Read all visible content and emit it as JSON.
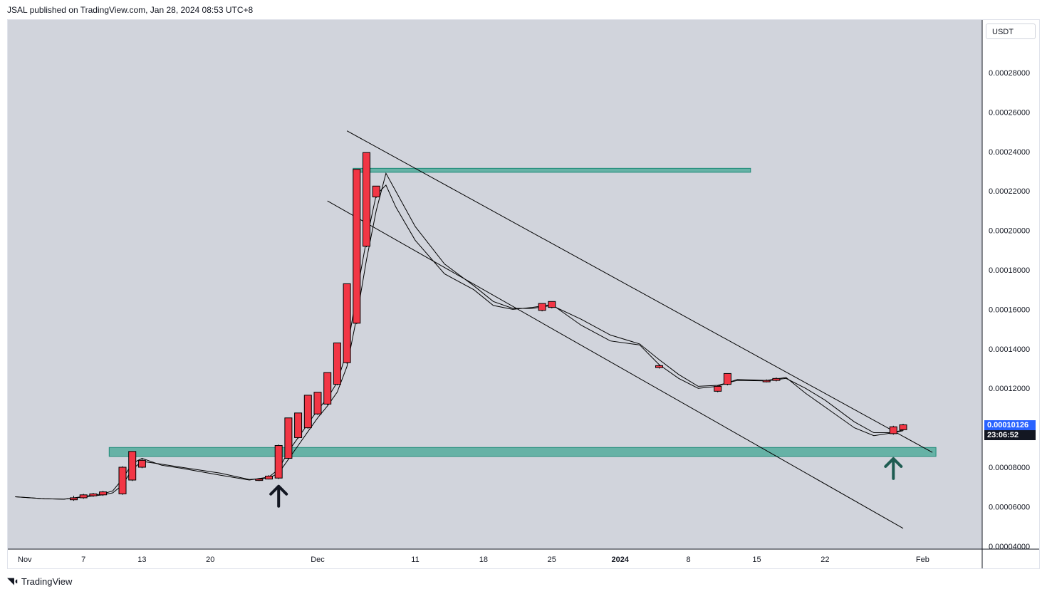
{
  "header": {
    "published": "JSAL published on TradingView.com, Jan 28, 2024 08:53 UTC+8"
  },
  "footer": {
    "logo_icon": "tradingview-logo-icon",
    "brand": "TradingView"
  },
  "price_scale": {
    "currency": "USDT"
  },
  "last_price": {
    "value": "0.00010126",
    "countdown": "23:06:52",
    "color": "#2962ff",
    "countdown_color": "#131722"
  },
  "colors": {
    "background": "#d1d4dc",
    "candle": "#f23645",
    "zone": "#66b2a6",
    "zone_border": "#1e8a78",
    "line": "#000000",
    "arrow": "#131722",
    "arrow_teal": "#1e5c52"
  },
  "chart_data": {
    "type": "candlestick",
    "title": "",
    "ylim": [
      3.7e-05,
      0.000302
    ],
    "y_ticks": [
      "0.00028000",
      "0.00026000",
      "0.00024000",
      "0.00022000",
      "0.00020000",
      "0.00018000",
      "0.00016000",
      "0.00014000",
      "0.00012000",
      "0.00010000",
      "0.00008000",
      "0.00006000",
      "0.00004000"
    ],
    "x_ticks": [
      {
        "label": "Nov",
        "day": 0,
        "bold": false
      },
      {
        "label": "7",
        "day": 6,
        "bold": false
      },
      {
        "label": "13",
        "day": 12,
        "bold": false
      },
      {
        "label": "20",
        "day": 19,
        "bold": false
      },
      {
        "label": "Dec",
        "day": 30,
        "bold": false
      },
      {
        "label": "11",
        "day": 40,
        "bold": false
      },
      {
        "label": "18",
        "day": 47,
        "bold": false
      },
      {
        "label": "25",
        "day": 54,
        "bold": false
      },
      {
        "label": "2024",
        "day": 61,
        "bold": true
      },
      {
        "label": "8",
        "day": 68,
        "bold": false
      },
      {
        "label": "15",
        "day": 75,
        "bold": false
      },
      {
        "label": "22",
        "day": 82,
        "bold": false
      },
      {
        "label": "Feb",
        "day": 92,
        "bold": false
      }
    ],
    "candles": [
      {
        "day": 5,
        "open": 6.35e-05,
        "high": 6.55e-05,
        "low": 6.3e-05,
        "close": 6.45e-05
      },
      {
        "day": 6,
        "open": 6.45e-05,
        "high": 6.65e-05,
        "low": 6.4e-05,
        "close": 6.6e-05
      },
      {
        "day": 7,
        "open": 6.55e-05,
        "high": 6.7e-05,
        "low": 6.5e-05,
        "close": 6.65e-05
      },
      {
        "day": 8,
        "open": 6.6e-05,
        "high": 6.8e-05,
        "low": 6.55e-05,
        "close": 6.75e-05
      },
      {
        "day": 10,
        "open": 6.65e-05,
        "high": 8.05e-05,
        "low": 6.6e-05,
        "close": 8e-05
      },
      {
        "day": 11,
        "open": 7.35e-05,
        "high": 8.8e-05,
        "low": 7.3e-05,
        "close": 8.8e-05
      },
      {
        "day": 12,
        "open": 8e-05,
        "high": 8.45e-05,
        "low": 7.95e-05,
        "close": 8.35e-05
      },
      {
        "day": 24,
        "open": 7.35e-05,
        "high": 7.45e-05,
        "low": 7.3e-05,
        "close": 7.4e-05
      },
      {
        "day": 25,
        "open": 7.4e-05,
        "high": 7.6e-05,
        "low": 7.38e-05,
        "close": 7.55e-05
      },
      {
        "day": 26,
        "open": 7.45e-05,
        "high": 9.15e-05,
        "low": 7.4e-05,
        "close": 9.1e-05
      },
      {
        "day": 27,
        "open": 8.45e-05,
        "high": 0.000105,
        "low": 8.4e-05,
        "close": 0.000105
      },
      {
        "day": 28,
        "open": 9.5e-05,
        "high": 0.0001075,
        "low": 9.45e-05,
        "close": 0.0001075
      },
      {
        "day": 29,
        "open": 0.0001,
        "high": 0.0001165,
        "low": 9.95e-05,
        "close": 0.0001165
      },
      {
        "day": 30,
        "open": 0.000107,
        "high": 0.000118,
        "low": 0.0001065,
        "close": 0.000118
      },
      {
        "day": 31,
        "open": 0.000112,
        "high": 0.000128,
        "low": 0.0001115,
        "close": 0.000128
      },
      {
        "day": 32,
        "open": 0.000122,
        "high": 0.000143,
        "low": 0.0001215,
        "close": 0.000143
      },
      {
        "day": 33,
        "open": 0.000133,
        "high": 0.000173,
        "low": 0.0001325,
        "close": 0.000173
      },
      {
        "day": 34,
        "open": 0.000153,
        "high": 0.000231,
        "low": 0.0001525,
        "close": 0.000231
      },
      {
        "day": 35,
        "open": 0.000192,
        "high": 0.0002395,
        "low": 0.0001915,
        "close": 0.0002395
      },
      {
        "day": 36,
        "open": 0.000217,
        "high": 0.0002225,
        "low": 0.0002165,
        "close": 0.0002225
      },
      {
        "day": 53,
        "open": 0.0001595,
        "high": 0.000163,
        "low": 0.000159,
        "close": 0.000163
      },
      {
        "day": 54,
        "open": 0.000161,
        "high": 0.000164,
        "low": 0.0001605,
        "close": 0.000164
      },
      {
        "day": 65,
        "open": 0.0001305,
        "high": 0.000132,
        "low": 0.00013,
        "close": 0.0001315
      },
      {
        "day": 71,
        "open": 0.0001185,
        "high": 0.0001215,
        "low": 0.000118,
        "close": 0.000121
      },
      {
        "day": 72,
        "open": 0.000122,
        "high": 0.0001275,
        "low": 0.0001215,
        "close": 0.0001275
      },
      {
        "day": 76,
        "open": 0.0001235,
        "high": 0.0001245,
        "low": 0.000123,
        "close": 0.000124
      },
      {
        "day": 77,
        "open": 0.000124,
        "high": 0.0001255,
        "low": 0.0001235,
        "close": 0.000125
      },
      {
        "day": 89,
        "open": 9.7e-05,
        "high": 0.000101,
        "low": 9.65e-05,
        "close": 0.0001005
      },
      {
        "day": 90,
        "open": 9.9e-05,
        "high": 0.000102,
        "low": 9.85e-05,
        "close": 0.0001015
      }
    ],
    "series": [
      {
        "points": [
          [
            -1,
            6.5e-05
          ],
          [
            2,
            6.4e-05
          ],
          [
            4,
            6.38e-05
          ],
          [
            8,
            6.65e-05
          ],
          [
            9,
            6.8e-05
          ],
          [
            10,
            7.4e-05
          ],
          [
            11,
            8.2e-05
          ],
          [
            12,
            8.45e-05
          ],
          [
            14,
            8.1e-05
          ],
          [
            16,
            7.95e-05
          ],
          [
            20,
            7.6e-05
          ],
          [
            23,
            7.35e-05
          ],
          [
            25,
            7.5e-05
          ],
          [
            26,
            7.9e-05
          ],
          [
            27,
            8.8e-05
          ],
          [
            28,
            9.5e-05
          ],
          [
            29,
            0.000102
          ],
          [
            30,
            0.000109
          ],
          [
            31,
            0.000115
          ],
          [
            32,
            0.000123
          ],
          [
            33,
            0.000139
          ],
          [
            34,
            0.000168
          ],
          [
            35,
            0.000195
          ],
          [
            36,
            0.000218
          ],
          [
            37,
            0.000223
          ],
          [
            38,
            0.000212
          ],
          [
            40,
            0.000195
          ],
          [
            43,
            0.000178
          ],
          [
            46,
            0.00017
          ],
          [
            48,
            0.000162
          ],
          [
            50,
            0.00016
          ],
          [
            52,
            0.000161
          ],
          [
            54,
            0.0001625
          ],
          [
            57,
            0.000152
          ],
          [
            60,
            0.000144
          ],
          [
            63,
            0.000142
          ],
          [
            65,
            0.000132
          ],
          [
            67,
            0.000125
          ],
          [
            69,
            0.00012
          ],
          [
            71,
            0.000121
          ],
          [
            73,
            0.0001245
          ],
          [
            76,
            0.000124
          ],
          [
            78,
            0.0001255
          ],
          [
            80,
            0.0001175
          ],
          [
            82,
            0.0001105
          ],
          [
            85,
            0.0001
          ],
          [
            87,
            9.6e-05
          ],
          [
            89,
            9.75e-05
          ],
          [
            90,
            9.9e-05
          ]
        ]
      },
      {
        "points": [
          [
            -1,
            6.5e-05
          ],
          [
            2,
            6.4e-05
          ],
          [
            4,
            6.38e-05
          ],
          [
            8,
            6.6e-05
          ],
          [
            9,
            6.7e-05
          ],
          [
            10,
            7.1e-05
          ],
          [
            11,
            7.9e-05
          ],
          [
            12,
            8.3e-05
          ],
          [
            14,
            8.15e-05
          ],
          [
            16,
            8e-05
          ],
          [
            20,
            7.7e-05
          ],
          [
            23,
            7.38e-05
          ],
          [
            25,
            7.45e-05
          ],
          [
            26,
            7.7e-05
          ],
          [
            27,
            8.4e-05
          ],
          [
            28,
            9.1e-05
          ],
          [
            29,
            9.8e-05
          ],
          [
            30,
            0.000105
          ],
          [
            31,
            0.000111
          ],
          [
            32,
            0.000118
          ],
          [
            33,
            0.000131
          ],
          [
            34,
            0.000156
          ],
          [
            35,
            0.000185
          ],
          [
            36,
            0.00021
          ],
          [
            37,
            0.000229
          ],
          [
            38,
            0.00022
          ],
          [
            40,
            0.000202
          ],
          [
            43,
            0.000183
          ],
          [
            46,
            0.000172
          ],
          [
            48,
            0.000164
          ],
          [
            50,
            0.0001605
          ],
          [
            52,
            0.0001605
          ],
          [
            54,
            0.000162
          ],
          [
            57,
            0.000155
          ],
          [
            60,
            0.000147
          ],
          [
            63,
            0.0001425
          ],
          [
            65,
            0.0001345
          ],
          [
            67,
            0.000127
          ],
          [
            69,
            0.000121
          ],
          [
            71,
            0.0001215
          ],
          [
            73,
            0.000124
          ],
          [
            76,
            0.0001238
          ],
          [
            78,
            0.000125
          ],
          [
            80,
            0.00012
          ],
          [
            82,
            0.000114
          ],
          [
            85,
            0.000103
          ],
          [
            87,
            9.75e-05
          ],
          [
            89,
            9.75e-05
          ],
          [
            90,
            9.85e-05
          ]
        ]
      }
    ],
    "zones": [
      {
        "from_day": 34,
        "to_day": 74,
        "low": 0.0002295,
        "high": 0.0002315
      },
      {
        "from_day": 9,
        "to_day": 93,
        "low": 8.55e-05,
        "high": 9e-05
      }
    ],
    "trendlines": [
      {
        "p1": [
          33,
          0.0002505
        ],
        "p2": [
          93,
          8.75e-05
        ]
      },
      {
        "p1": [
          31,
          0.000215
        ],
        "p2": [
          90,
          4.9e-05
        ]
      }
    ],
    "arrows": [
      {
        "day": 26,
        "price": 7e-05,
        "color": "arrow"
      },
      {
        "day": 89,
        "price": 8.4e-05,
        "color": "arrow_teal"
      }
    ]
  }
}
